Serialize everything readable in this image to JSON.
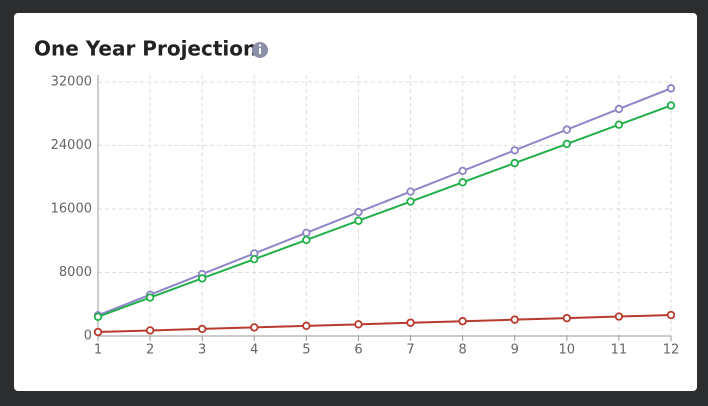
{
  "chart_data": {
    "type": "line",
    "title": "One Year Projection",
    "x": [
      1,
      2,
      3,
      4,
      5,
      6,
      7,
      8,
      9,
      10,
      11,
      12
    ],
    "xlim": [
      1,
      12
    ],
    "xticks": [
      1,
      2,
      3,
      4,
      5,
      6,
      7,
      8,
      9,
      10,
      11,
      12
    ],
    "ylim": [
      0,
      32000
    ],
    "yticks": [
      0,
      8000,
      16000,
      24000,
      32000
    ],
    "grid": true,
    "series": [
      {
        "color": "#8e86c7",
        "values": [
          2600,
          5200,
          7800,
          10400,
          13000,
          15600,
          18200,
          20800,
          23400,
          26000,
          28600,
          31200
        ]
      },
      {
        "color": "#22b04a",
        "values": [
          2420,
          4840,
          7260,
          9680,
          12100,
          14520,
          16940,
          19360,
          21780,
          24200,
          26620,
          29040
        ]
      },
      {
        "color": "#b83a2e",
        "values": [
          500,
          700,
          890,
          1080,
          1280,
          1470,
          1670,
          1860,
          2060,
          2250,
          2450,
          2640
        ]
      }
    ]
  }
}
